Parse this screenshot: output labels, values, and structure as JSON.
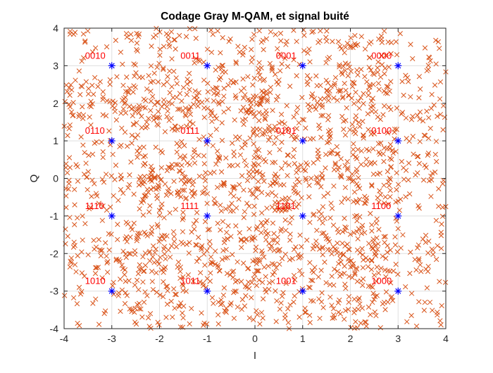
{
  "chart_data": {
    "type": "scatter",
    "title": "Codage Gray M-QAM, et signal buité",
    "xlabel": "I",
    "ylabel": "Q",
    "xlim": [
      -4,
      4
    ],
    "ylim": [
      -4,
      4
    ],
    "xticks": [
      -4,
      -3,
      -2,
      -1,
      0,
      1,
      2,
      3,
      4
    ],
    "yticks": [
      -4,
      -3,
      -2,
      -1,
      0,
      1,
      2,
      3,
      4
    ],
    "grid": true,
    "noise_color": "#D95319",
    "constellation_color": "#0000FF",
    "label_color": "#FF0000",
    "noise_marker": "x",
    "constellation_marker": "*",
    "noise_sample_count": 2400,
    "constellation": [
      {
        "label": "0010",
        "i": -3,
        "q": 3
      },
      {
        "label": "0011",
        "i": -1,
        "q": 3
      },
      {
        "label": "0001",
        "i": 1,
        "q": 3
      },
      {
        "label": "0000",
        "i": 3,
        "q": 3
      },
      {
        "label": "0110",
        "i": -3,
        "q": 1
      },
      {
        "label": "0111",
        "i": -1,
        "q": 1
      },
      {
        "label": "0101",
        "i": 1,
        "q": 1
      },
      {
        "label": "0100",
        "i": 3,
        "q": 1
      },
      {
        "label": "1110",
        "i": -3,
        "q": -1
      },
      {
        "label": "1111",
        "i": -1,
        "q": -1
      },
      {
        "label": "1101",
        "i": 1,
        "q": -1
      },
      {
        "label": "1100",
        "i": 3,
        "q": -1
      },
      {
        "label": "1010",
        "i": -3,
        "q": -3
      },
      {
        "label": "1011",
        "i": -1,
        "q": -3
      },
      {
        "label": "1001",
        "i": 1,
        "q": -3
      },
      {
        "label": "1000",
        "i": 3,
        "q": -3
      }
    ]
  }
}
